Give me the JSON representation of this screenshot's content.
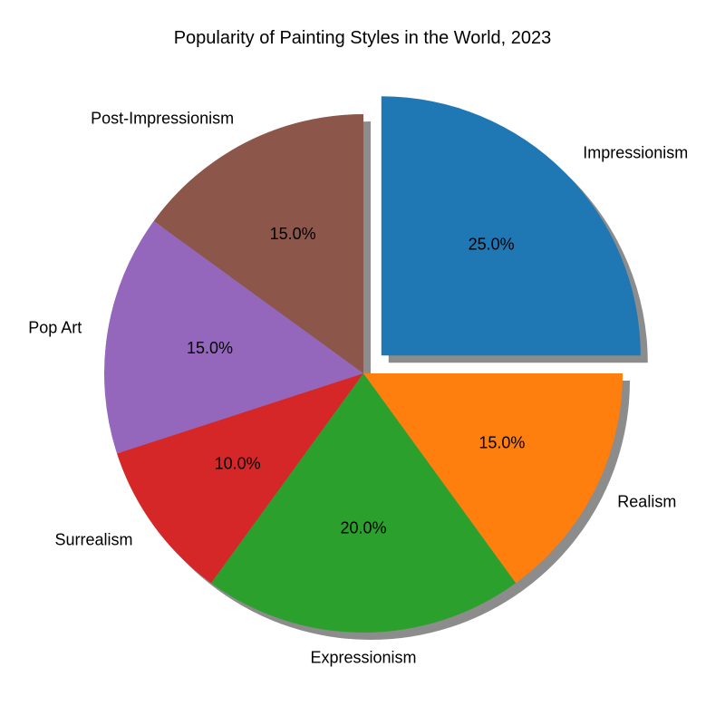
{
  "chart_data": {
    "type": "pie",
    "title": "Popularity of Painting Styles in the World, 2023",
    "slices": [
      {
        "label": "Impressionism",
        "value": 25,
        "pct_label": "25.0%",
        "color": "#1f77b4",
        "exploded": true
      },
      {
        "label": "Realism",
        "value": 15,
        "pct_label": "15.0%",
        "color": "#ff7f0e",
        "exploded": false
      },
      {
        "label": "Expressionism",
        "value": 20,
        "pct_label": "20.0%",
        "color": "#2ca02c",
        "exploded": false
      },
      {
        "label": "Surrealism",
        "value": 10,
        "pct_label": "10.0%",
        "color": "#d62728",
        "exploded": false
      },
      {
        "label": "Pop Art",
        "value": 15,
        "pct_label": "15.0%",
        "color": "#9467bd",
        "exploded": false
      },
      {
        "label": "Post-Impressionism",
        "value": 15,
        "pct_label": "15.0%",
        "color": "#8c564b",
        "exploded": false
      }
    ],
    "start_angle": "90 degrees (top)",
    "direction": "clockwise",
    "shadow": true,
    "legend": "none"
  }
}
